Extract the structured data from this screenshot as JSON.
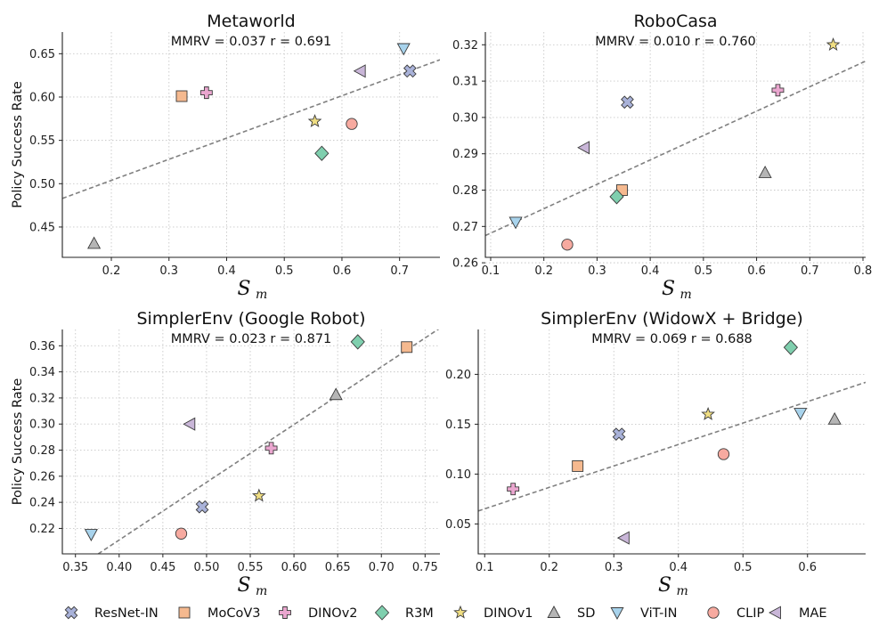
{
  "colors": {
    "ResNet-IN": "#a9b2d9",
    "MoCoV3": "#f5b98f",
    "DINOv2": "#eaa6cf",
    "R3M": "#7fcfae",
    "DINOv1": "#f0de82",
    "SD": "#b5b5b5",
    "ViT-IN": "#a8d3ec",
    "CLIP": "#f7aaa0",
    "MAE": "#c9b6d8"
  },
  "legend": [
    {
      "label": "ResNet-IN",
      "icon": "x-marker-icon"
    },
    {
      "label": "MoCoV3",
      "icon": "square-marker-icon"
    },
    {
      "label": "DINOv2",
      "icon": "plus-marker-icon"
    },
    {
      "label": "R3M",
      "icon": "diamond-marker-icon"
    },
    {
      "label": "DINOv1",
      "icon": "star-marker-icon"
    },
    {
      "label": "SD",
      "icon": "triangle-up-marker-icon"
    },
    {
      "label": "ViT-IN",
      "icon": "triangle-down-marker-icon"
    },
    {
      "label": "CLIP",
      "icon": "circle-marker-icon"
    },
    {
      "label": "MAE",
      "icon": "triangle-left-marker-icon"
    }
  ],
  "chart_data": [
    {
      "type": "scatter",
      "title": "Metaworld",
      "annotation": "MMRV = 0.037    r = 0.691",
      "xlabel": "S",
      "xlabel_sub": "m",
      "ylabel": "Policy Success Rate",
      "xlim": [
        0.115,
        0.77
      ],
      "ylim": [
        0.415,
        0.675
      ],
      "xticks": [
        0.2,
        0.3,
        0.4,
        0.5,
        0.6,
        0.7
      ],
      "xtick_labels": [
        "0.2",
        "0.3",
        "0.4",
        "0.5",
        "0.6",
        "0.7"
      ],
      "yticks": [
        0.45,
        0.5,
        0.55,
        0.6,
        0.65
      ],
      "ytick_labels": [
        "0.45",
        "0.50",
        "0.55",
        "0.60",
        "0.65"
      ],
      "fit": [
        [
          0.115,
          0.483
        ],
        [
          0.77,
          0.643
        ]
      ],
      "points": [
        {
          "model": "ResNet-IN",
          "x": 0.718,
          "y": 0.63
        },
        {
          "model": "MoCoV3",
          "x": 0.322,
          "y": 0.601
        },
        {
          "model": "DINOv2",
          "x": 0.365,
          "y": 0.605
        },
        {
          "model": "R3M",
          "x": 0.565,
          "y": 0.535
        },
        {
          "model": "DINOv1",
          "x": 0.553,
          "y": 0.572
        },
        {
          "model": "SD",
          "x": 0.17,
          "y": 0.431
        },
        {
          "model": "ViT-IN",
          "x": 0.707,
          "y": 0.656
        },
        {
          "model": "CLIP",
          "x": 0.617,
          "y": 0.569
        },
        {
          "model": "MAE",
          "x": 0.632,
          "y": 0.63
        }
      ]
    },
    {
      "type": "scatter",
      "title": "RoboCasa",
      "annotation": "MMRV = 0.010    r = 0.760",
      "xlabel": "S",
      "xlabel_sub": "m",
      "ylabel": "",
      "xlim": [
        0.09,
        0.805
      ],
      "ylim": [
        0.2615,
        0.3235
      ],
      "xticks": [
        0.1,
        0.2,
        0.3,
        0.4,
        0.5,
        0.6,
        0.7,
        0.8
      ],
      "xtick_labels": [
        "0.1",
        "0.2",
        "0.3",
        "0.4",
        "0.5",
        "0.6",
        "0.7",
        "0.8"
      ],
      "yticks": [
        0.26,
        0.27,
        0.28,
        0.29,
        0.3,
        0.31,
        0.32
      ],
      "ytick_labels": [
        "0.26",
        "0.27",
        "0.28",
        "0.29",
        "0.30",
        "0.31",
        "0.32"
      ],
      "fit": [
        [
          0.09,
          0.2675
        ],
        [
          0.805,
          0.3155
        ]
      ],
      "points": [
        {
          "model": "ResNet-IN",
          "x": 0.357,
          "y": 0.3042
        },
        {
          "model": "MoCoV3",
          "x": 0.347,
          "y": 0.28
        },
        {
          "model": "DINOv2",
          "x": 0.64,
          "y": 0.3075
        },
        {
          "model": "R3M",
          "x": 0.337,
          "y": 0.2782
        },
        {
          "model": "DINOv1",
          "x": 0.744,
          "y": 0.32
        },
        {
          "model": "SD",
          "x": 0.616,
          "y": 0.2848
        },
        {
          "model": "ViT-IN",
          "x": 0.147,
          "y": 0.2712
        },
        {
          "model": "CLIP",
          "x": 0.244,
          "y": 0.265
        },
        {
          "model": "MAE",
          "x": 0.276,
          "y": 0.2917
        }
      ]
    },
    {
      "type": "scatter",
      "title": "SimplerEnv (Google Robot)",
      "annotation": "MMRV = 0.023    r = 0.871",
      "xlabel": "S",
      "xlabel_sub": "m",
      "ylabel": "Policy Success Rate",
      "xlim": [
        0.335,
        0.767
      ],
      "ylim": [
        0.2005,
        0.3725
      ],
      "xticks": [
        0.35,
        0.4,
        0.45,
        0.5,
        0.55,
        0.6,
        0.65,
        0.7,
        0.75
      ],
      "xtick_labels": [
        "0.35",
        "0.40",
        "0.45",
        "0.50",
        "0.55",
        "0.60",
        "0.65",
        "0.70",
        "0.75"
      ],
      "yticks": [
        0.22,
        0.24,
        0.26,
        0.28,
        0.3,
        0.32,
        0.34,
        0.36
      ],
      "ytick_labels": [
        "0.22",
        "0.24",
        "0.26",
        "0.28",
        "0.30",
        "0.32",
        "0.34",
        "0.36"
      ],
      "fit": [
        [
          0.376,
          0.2005
        ],
        [
          0.767,
          0.3735
        ]
      ],
      "points": [
        {
          "model": "ResNet-IN",
          "x": 0.495,
          "y": 0.2365
        },
        {
          "model": "MoCoV3",
          "x": 0.729,
          "y": 0.359
        },
        {
          "model": "DINOv2",
          "x": 0.574,
          "y": 0.2815
        },
        {
          "model": "R3M",
          "x": 0.673,
          "y": 0.363
        },
        {
          "model": "DINOv1",
          "x": 0.56,
          "y": 0.245
        },
        {
          "model": "SD",
          "x": 0.648,
          "y": 0.3225
        },
        {
          "model": "ViT-IN",
          "x": 0.368,
          "y": 0.2155
        },
        {
          "model": "CLIP",
          "x": 0.471,
          "y": 0.216
        },
        {
          "model": "MAE",
          "x": 0.481,
          "y": 0.3
        }
      ]
    },
    {
      "type": "scatter",
      "title": "SimplerEnv (WidowX + Bridge)",
      "annotation": "MMRV = 0.069    r = 0.688",
      "xlabel": "S",
      "xlabel_sub": "m",
      "ylabel": "",
      "xlim": [
        0.09,
        0.69
      ],
      "ylim": [
        0.02,
        0.245
      ],
      "xticks": [
        0.1,
        0.2,
        0.3,
        0.4,
        0.5,
        0.6
      ],
      "xtick_labels": [
        "0.1",
        "0.2",
        "0.3",
        "0.4",
        "0.5",
        "0.6"
      ],
      "yticks": [
        0.05,
        0.1,
        0.15,
        0.2
      ],
      "ytick_labels": [
        "0.05",
        "0.10",
        "0.15",
        "0.20"
      ],
      "fit": [
        [
          0.09,
          0.063
        ],
        [
          0.69,
          0.192
        ]
      ],
      "points": [
        {
          "model": "ResNet-IN",
          "x": 0.308,
          "y": 0.14
        },
        {
          "model": "MoCoV3",
          "x": 0.244,
          "y": 0.108
        },
        {
          "model": "DINOv2",
          "x": 0.144,
          "y": 0.085
        },
        {
          "model": "R3M",
          "x": 0.574,
          "y": 0.227
        },
        {
          "model": "DINOv1",
          "x": 0.446,
          "y": 0.16
        },
        {
          "model": "SD",
          "x": 0.642,
          "y": 0.155
        },
        {
          "model": "ViT-IN",
          "x": 0.589,
          "y": 0.161
        },
        {
          "model": "CLIP",
          "x": 0.47,
          "y": 0.12
        },
        {
          "model": "MAE",
          "x": 0.316,
          "y": 0.036
        }
      ]
    }
  ]
}
